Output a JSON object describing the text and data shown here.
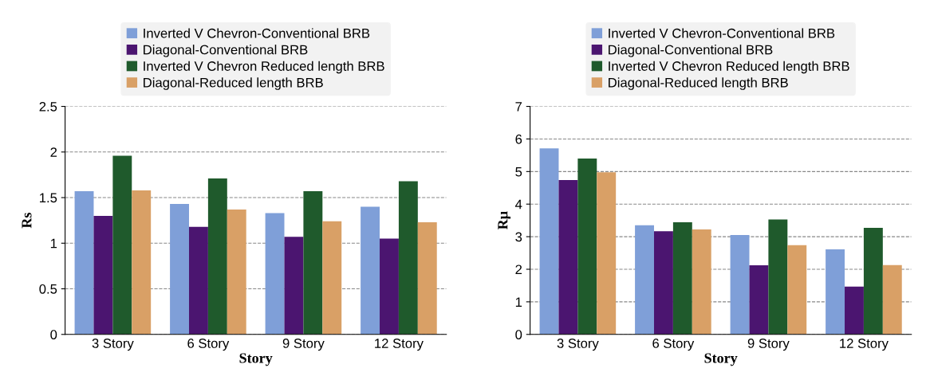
{
  "chart_data": [
    {
      "type": "bar",
      "xlabel": "Story",
      "ylabel": "Rs",
      "categories": [
        "3 Story",
        "6 Story",
        "9 Story",
        "12 Story"
      ],
      "ylim": [
        0,
        2.5
      ],
      "yticks": [
        0,
        0.5,
        1,
        1.5,
        2,
        2.5
      ],
      "grid": "y",
      "legend": "top",
      "series": [
        {
          "name": "Inverted V Chevron-Conventional BRB",
          "color": "#7f9fd8",
          "values": [
            1.57,
            1.43,
            1.33,
            1.4
          ]
        },
        {
          "name": "Diagonal-Conventional BRB",
          "color": "#4b1570",
          "values": [
            1.3,
            1.18,
            1.07,
            1.05
          ]
        },
        {
          "name": "Inverted V Chevron Reduced length BRB",
          "color": "#1f5a2c",
          "values": [
            1.96,
            1.71,
            1.57,
            1.68
          ]
        },
        {
          "name": "Diagonal-Reduced length BRB",
          "color": "#d9a066",
          "values": [
            1.58,
            1.37,
            1.24,
            1.23
          ]
        }
      ]
    },
    {
      "type": "bar",
      "xlabel": "Story",
      "ylabel": "Rμ",
      "categories": [
        "3 Story",
        "6 Story",
        "9 Story",
        "12 Story"
      ],
      "ylim": [
        0,
        7
      ],
      "yticks": [
        0,
        1,
        2,
        3,
        4,
        5,
        6,
        7
      ],
      "grid": "y",
      "legend": "top",
      "series": [
        {
          "name": "Inverted V Chevron-Conventional BRB",
          "color": "#7f9fd8",
          "values": [
            5.71,
            3.35,
            3.05,
            2.61
          ]
        },
        {
          "name": "Diagonal-Conventional BRB",
          "color": "#4b1570",
          "values": [
            4.74,
            3.17,
            2.12,
            1.47
          ]
        },
        {
          "name": "Inverted V Chevron Reduced length BRB",
          "color": "#1f5a2c",
          "values": [
            5.4,
            3.44,
            3.53,
            3.27
          ]
        },
        {
          "name": "Diagonal-Reduced length BRB",
          "color": "#d9a066",
          "values": [
            4.98,
            3.22,
            2.74,
            2.13
          ]
        }
      ]
    }
  ]
}
